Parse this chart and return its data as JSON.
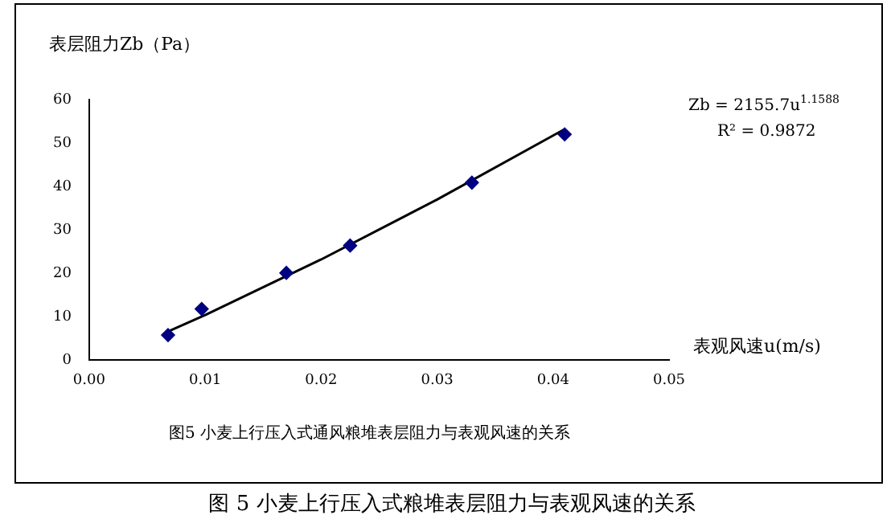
{
  "chart_data": {
    "type": "scatter",
    "xlabel": "表观风速u(m/s)",
    "ylabel": "表层阻力Zb（Pa）",
    "xlim": [
      0,
      0.05
    ],
    "xticks": [
      {
        "value": 0,
        "label": "0.00"
      },
      {
        "value": 0.01,
        "label": "0.01"
      },
      {
        "value": 0.02,
        "label": "0.02"
      },
      {
        "value": 0.03,
        "label": "0.03"
      },
      {
        "value": 0.04,
        "label": "0.04"
      },
      {
        "value": 0.05,
        "label": "0.05"
      }
    ],
    "ylim": [
      0,
      60
    ],
    "yticks": [
      0,
      10,
      20,
      30,
      40,
      50,
      60
    ],
    "grid": false,
    "legend": false,
    "series": [
      {
        "marker": "diamond",
        "color": "#000080",
        "x": [
          0.0068,
          0.0097,
          0.017,
          0.0225,
          0.033,
          0.041
        ],
        "values": [
          5.8,
          11.8,
          20.1,
          26.4,
          40.9,
          52
        ]
      },
      {
        "type": "line",
        "marker": "none",
        "line_style": "solid",
        "color": "#000000",
        "x": [
          0.0068,
          0.01,
          0.02,
          0.03,
          0.041
        ],
        "values": [
          6.6,
          10.4,
          23.2,
          37,
          53.2
        ]
      }
    ],
    "annotations": [
      "Zb = 2155.7u$^{1.1588}$",
      "R² = 0.9872",
      "图5 小麦上行压入式通风粮堆表层阻力与表观风速的关系",
      "图 5 小麦上行压入式粮堆表层阻力与表观风速的关系"
    ]
  }
}
